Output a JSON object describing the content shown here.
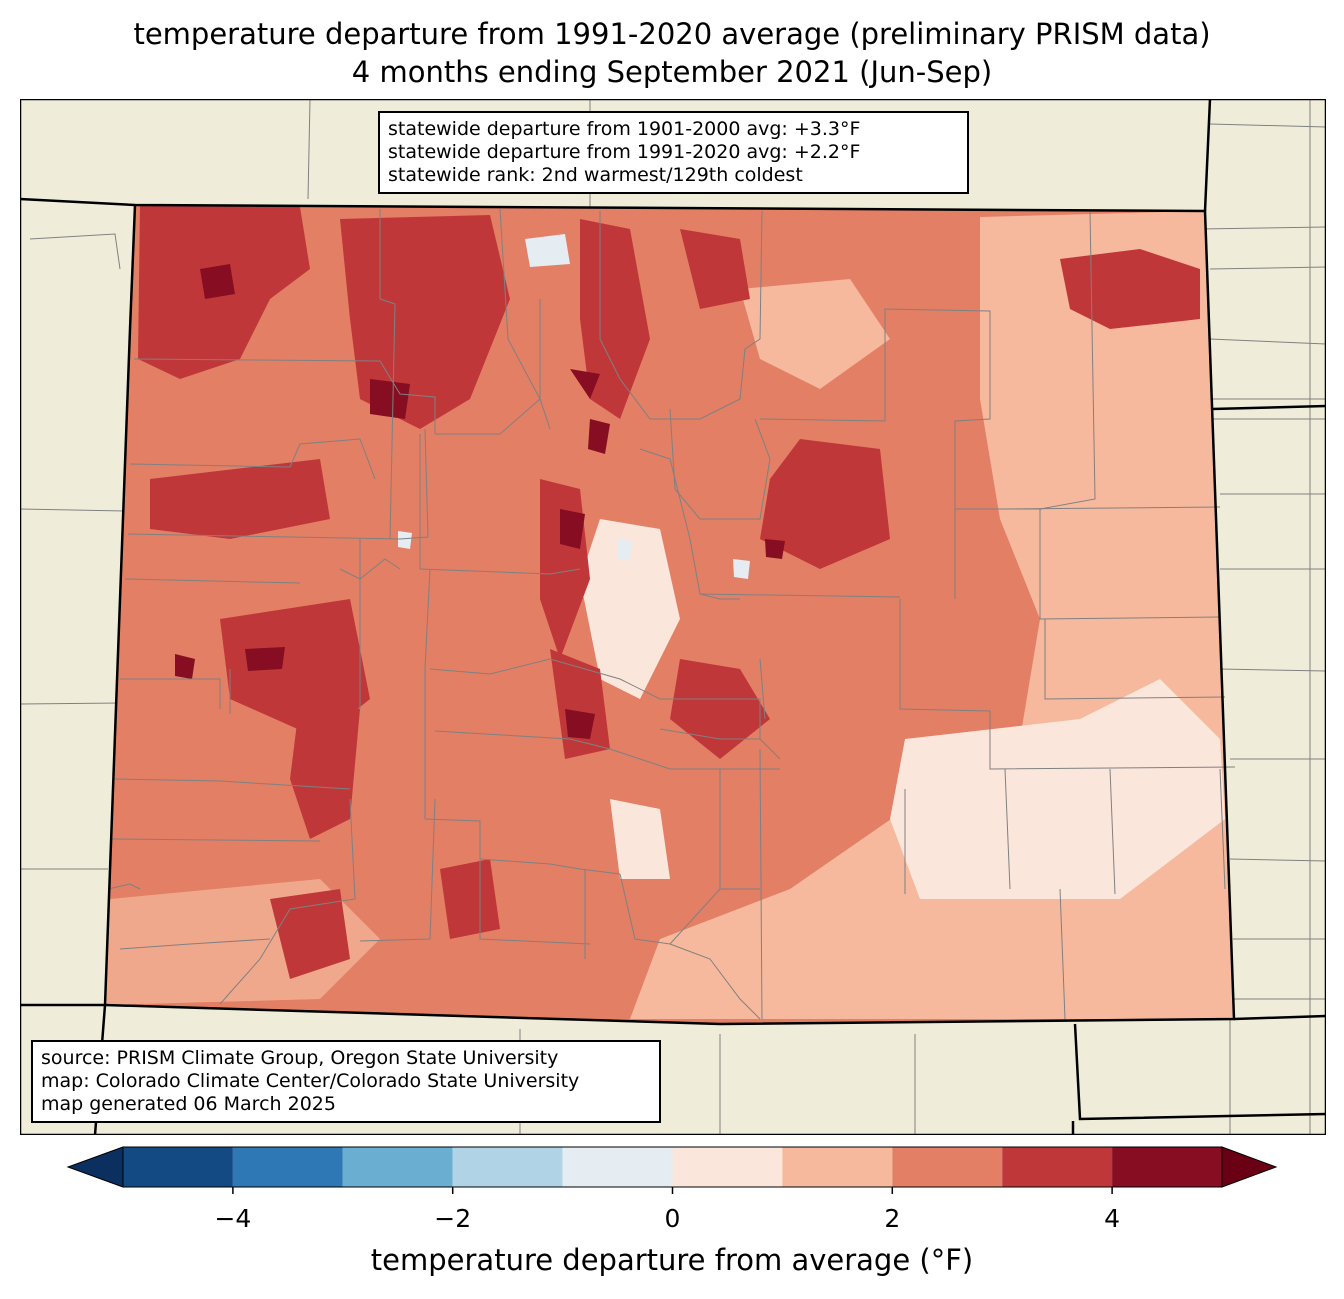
{
  "title": {
    "line1": "temperature departure from 1991-2020 average (preliminary PRISM data)",
    "line2": "4 months ending September 2021 (Jun-Sep)"
  },
  "stats": {
    "line1": "statewide departure from 1901-2000 avg: +3.3°F",
    "line2": "statewide departure from 1991-2020 avg: +2.2°F",
    "line3": "statewide rank: 2nd warmest/129th coldest"
  },
  "credits": {
    "line1": "source: PRISM Climate Group, Oregon State University",
    "line2": "map: Colorado Climate Center/Colorado State University",
    "line3": "map generated 06 March 2025"
  },
  "colorbar": {
    "label": "temperature departure from average (°F)",
    "bins": [
      {
        "from": -5,
        "to": -4,
        "color": "#144a84"
      },
      {
        "from": -4,
        "to": -3,
        "color": "#2e78b5"
      },
      {
        "from": -3,
        "to": -2,
        "color": "#6aaed1"
      },
      {
        "from": -2,
        "to": -1,
        "color": "#b0d4e6"
      },
      {
        "from": -1,
        "to": 0,
        "color": "#e5edf3"
      },
      {
        "from": 0,
        "to": 1,
        "color": "#fbe6dc"
      },
      {
        "from": 1,
        "to": 2,
        "color": "#f6b99d"
      },
      {
        "from": 2,
        "to": 3,
        "color": "#e27f65"
      },
      {
        "from": 3,
        "to": 4,
        "color": "#c0373a"
      },
      {
        "from": 4,
        "to": 5,
        "color": "#860d22"
      }
    ],
    "under_color": "#0b3060",
    "over_color": "#6a0014",
    "ticks": [
      {
        "value": -4,
        "label": "−4"
      },
      {
        "value": -2,
        "label": "−2"
      },
      {
        "value": 0,
        "label": "0"
      },
      {
        "value": 2,
        "label": "2"
      },
      {
        "value": 4,
        "label": "4"
      }
    ]
  },
  "map": {
    "land_color": "#efedda",
    "boundary_color": "#808080",
    "state_line_color": "#000000"
  }
}
